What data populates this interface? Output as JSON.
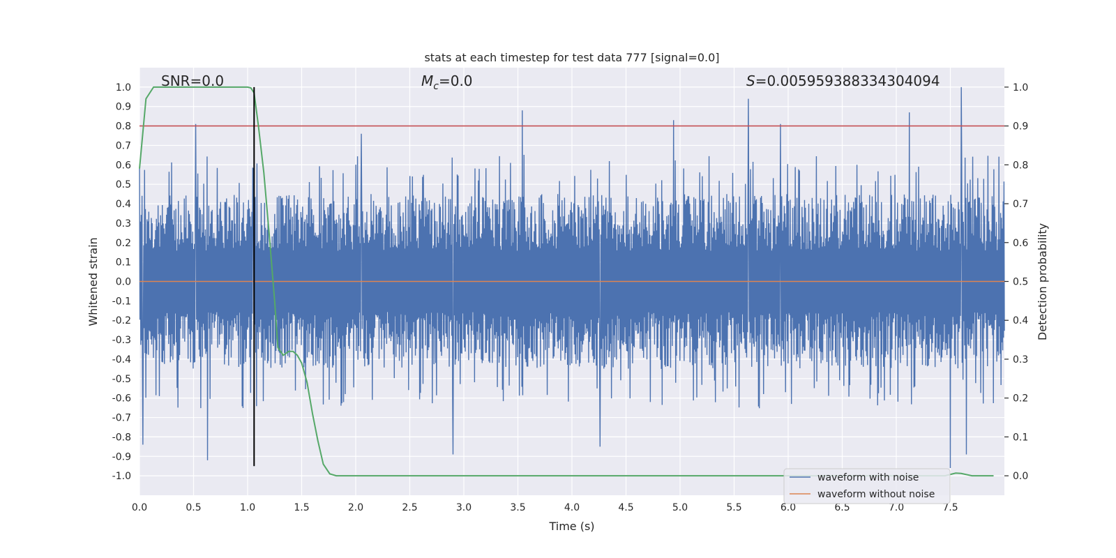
{
  "chart_data": {
    "type": "line",
    "title": "stats at each timestep for test data 777 [signal=0.0]",
    "xlabel": "Time (s)",
    "ylabel": "Whitened strain",
    "y2label": "Detection probability",
    "xlim": [
      0.0,
      8.0
    ],
    "ylim": [
      -1.1,
      1.1
    ],
    "y2lim": [
      -0.05,
      1.05
    ],
    "xticks": [
      "0.0",
      "0.5",
      "1.0",
      "1.5",
      "2.0",
      "2.5",
      "3.0",
      "3.5",
      "4.0",
      "4.5",
      "5.0",
      "5.5",
      "6.0",
      "6.5",
      "7.0",
      "7.5"
    ],
    "xtick_values": [
      0.0,
      0.5,
      1.0,
      1.5,
      2.0,
      2.5,
      3.0,
      3.5,
      4.0,
      4.5,
      5.0,
      5.5,
      6.0,
      6.5,
      7.0,
      7.5
    ],
    "yticks": [
      "1.0",
      "0.9",
      "0.8",
      "0.7",
      "0.6",
      "0.5",
      "0.4",
      "0.3",
      "0.2",
      "0.1",
      "0.0",
      "-0.1",
      "-0.2",
      "-0.3",
      "-0.4",
      "-0.5",
      "-0.6",
      "-0.7",
      "-0.8",
      "-0.9",
      "-1.0"
    ],
    "ytick_values": [
      1.0,
      0.9,
      0.8,
      0.7,
      0.6,
      0.5,
      0.4,
      0.3,
      0.2,
      0.1,
      0.0,
      -0.1,
      -0.2,
      -0.3,
      -0.4,
      -0.5,
      -0.6,
      -0.7,
      -0.8,
      -0.9,
      -1.0
    ],
    "y2ticks": [
      "1.0",
      "0.9",
      "0.8",
      "0.7",
      "0.6",
      "0.5",
      "0.4",
      "0.3",
      "0.2",
      "0.1",
      "0.0"
    ],
    "y2tick_values": [
      1.0,
      0.9,
      0.8,
      0.7,
      0.6,
      0.5,
      0.4,
      0.3,
      0.2,
      0.1,
      0.0
    ],
    "annotations": {
      "snr": "SNR=0.0",
      "mc_sym": "M",
      "mc_sub": "c",
      "mc_val": "=0.0",
      "s_sym": "S",
      "s_val": "=0.005959388334304094"
    },
    "threshold_y2": 0.9,
    "event_time": 1.06,
    "event_range": [
      -0.95,
      1.0
    ],
    "series": [
      {
        "name": "waveform with noise",
        "color": "#4c72b0",
        "kind": "noise",
        "sample_rate": 256,
        "typical_envelope": 0.45,
        "peak_points": [
          [
            0.0,
            0.58
          ],
          [
            0.03,
            -0.84
          ],
          [
            0.52,
            0.81
          ],
          [
            0.63,
            -0.92
          ],
          [
            1.05,
            0.58
          ],
          [
            2.05,
            0.76
          ],
          [
            2.9,
            -0.89
          ],
          [
            3.54,
            0.88
          ],
          [
            4.26,
            -0.85
          ],
          [
            4.94,
            0.83
          ],
          [
            5.63,
            0.94
          ],
          [
            5.93,
            0.81
          ],
          [
            7.12,
            0.87
          ],
          [
            7.5,
            -0.96
          ],
          [
            7.6,
            1.0
          ],
          [
            7.65,
            -0.89
          ]
        ]
      },
      {
        "name": "waveform without noise",
        "color": "#dd8452",
        "kind": "flat",
        "value": 0.0
      },
      {
        "name": "detection probability",
        "color": "#55a868",
        "axis": "right",
        "x": [
          0.0,
          0.03,
          0.06,
          0.13,
          0.2,
          0.3,
          0.5,
          0.8,
          1.0,
          1.03,
          1.06,
          1.1,
          1.15,
          1.2,
          1.25,
          1.28,
          1.33,
          1.38,
          1.42,
          1.46,
          1.5,
          1.55,
          1.6,
          1.65,
          1.7,
          1.76,
          1.82,
          2.0,
          3.0,
          4.0,
          5.0,
          6.0,
          7.0,
          7.45,
          7.55,
          7.6,
          7.7,
          7.9
        ],
        "values": [
          0.79,
          0.88,
          0.97,
          1.0,
          1.0,
          1.0,
          1.0,
          1.0,
          1.0,
          0.998,
          0.985,
          0.9,
          0.78,
          0.62,
          0.45,
          0.33,
          0.31,
          0.32,
          0.32,
          0.31,
          0.29,
          0.24,
          0.16,
          0.09,
          0.03,
          0.005,
          0.0,
          0.0,
          0.0,
          0.0,
          0.0,
          0.0,
          0.0,
          0.0,
          0.007,
          0.006,
          0.0,
          0.0
        ]
      },
      {
        "name": "threshold",
        "color": "#c44e52",
        "axis": "right",
        "kind": "hline",
        "value": 0.9
      },
      {
        "name": "event marker",
        "color": "#000000",
        "kind": "vline",
        "value": 1.06
      }
    ],
    "legend": {
      "location": "lower-right",
      "entries": [
        "waveform with noise",
        "waveform without noise"
      ]
    }
  },
  "colors": {
    "background": "#eaeaf2",
    "grid": "#ffffff",
    "text": "#262626"
  }
}
